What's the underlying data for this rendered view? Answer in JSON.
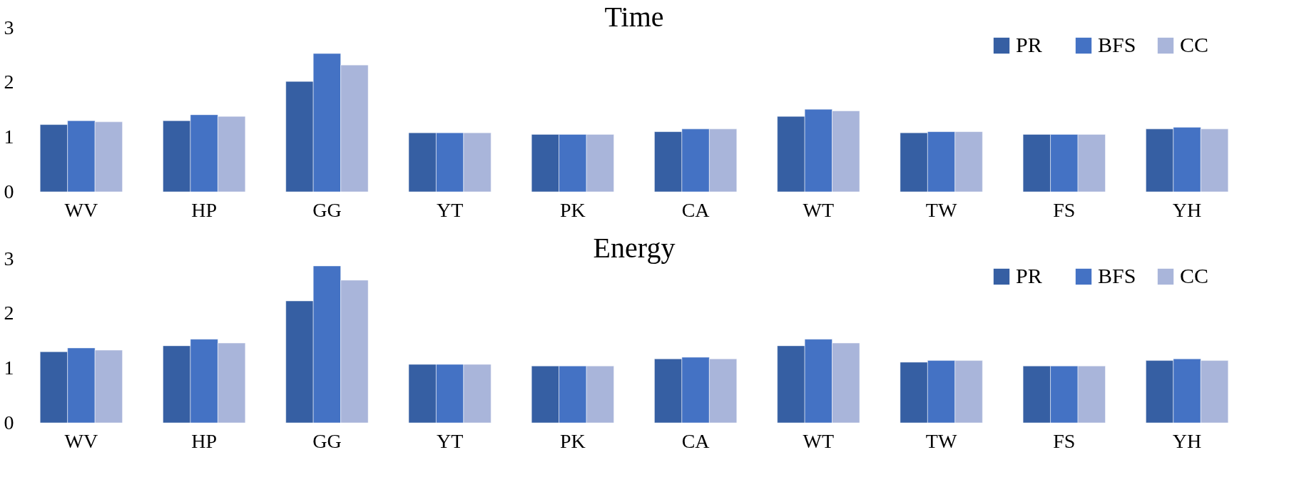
{
  "chart_data": [
    {
      "type": "bar",
      "title": "Time",
      "categories": [
        "WV",
        "HP",
        "GG",
        "YT",
        "PK",
        "CA",
        "WT",
        "TW",
        "FS",
        "YH"
      ],
      "ylim": [
        0,
        3
      ],
      "yticks": [
        0,
        1,
        2,
        3
      ],
      "grid": false,
      "legend": "top right",
      "series": [
        {
          "name": "PR",
          "color": "#365fa3",
          "values": [
            1.23,
            1.3,
            2.02,
            1.08,
            1.05,
            1.1,
            1.38,
            1.08,
            1.05,
            1.15
          ]
        },
        {
          "name": "BFS",
          "color": "#4472c4",
          "values": [
            1.3,
            1.41,
            2.53,
            1.08,
            1.05,
            1.15,
            1.51,
            1.1,
            1.05,
            1.18
          ]
        },
        {
          "name": "CC",
          "color": "#a9b5da",
          "values": [
            1.28,
            1.38,
            2.32,
            1.08,
            1.05,
            1.15,
            1.48,
            1.1,
            1.05,
            1.15
          ]
        }
      ]
    },
    {
      "type": "bar",
      "title": "Energy",
      "categories": [
        "WV",
        "HP",
        "GG",
        "YT",
        "PK",
        "CA",
        "WT",
        "TW",
        "FS",
        "YH"
      ],
      "ylim": [
        0,
        3
      ],
      "yticks": [
        0,
        1,
        2,
        3
      ],
      "grid": false,
      "legend": "top right",
      "series": [
        {
          "name": "PR",
          "color": "#365fa3",
          "values": [
            1.3,
            1.41,
            2.23,
            1.07,
            1.04,
            1.17,
            1.41,
            1.11,
            1.04,
            1.14
          ]
        },
        {
          "name": "BFS",
          "color": "#4472c4",
          "values": [
            1.37,
            1.53,
            2.87,
            1.07,
            1.04,
            1.2,
            1.53,
            1.14,
            1.04,
            1.17
          ]
        },
        {
          "name": "CC",
          "color": "#a9b5da",
          "values": [
            1.33,
            1.46,
            2.61,
            1.07,
            1.04,
            1.17,
            1.46,
            1.14,
            1.04,
            1.14
          ]
        }
      ]
    }
  ]
}
